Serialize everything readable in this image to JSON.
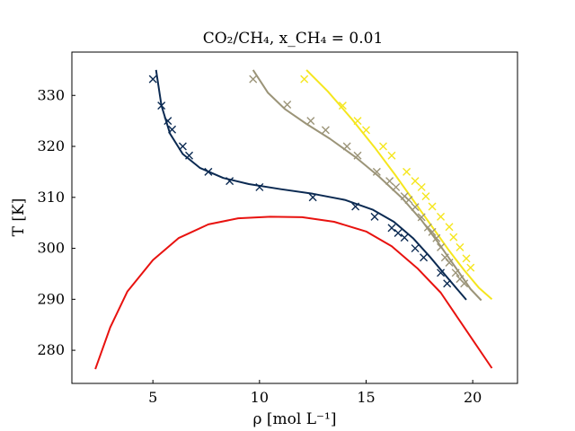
{
  "chart_data": {
    "type": "scatter",
    "title": "CO₂/CH₄, x_CH₄ = 0.01",
    "xlabel": "ρ [mol L⁻¹]",
    "ylabel": "T [K]",
    "xlim": [
      1.2,
      22.1
    ],
    "ylim": [
      273.5,
      338.5
    ],
    "xticks": [
      5,
      10,
      15,
      20
    ],
    "yticks": [
      280,
      290,
      300,
      310,
      320,
      330
    ],
    "grid": false,
    "legend": "none",
    "colors": {
      "navy": "#0b2a52",
      "gray": "#9b9478",
      "yellow": "#f5e61e",
      "red": "#e8120f"
    },
    "series": [
      {
        "kind": "line",
        "color": "#e8120f",
        "x": [
          2.3,
          3.0,
          3.8,
          5.0,
          6.2,
          7.6,
          9.0,
          10.5,
          12.0,
          13.5,
          15.0,
          16.2,
          17.4,
          18.5,
          19.6,
          20.9
        ],
        "y": [
          276.3,
          284.5,
          291.5,
          297.7,
          302.0,
          304.7,
          305.9,
          306.2,
          306.1,
          305.2,
          303.3,
          300.4,
          296.1,
          291.3,
          284.5,
          276.5
        ]
      },
      {
        "kind": "line",
        "color": "#0b2a52",
        "x": [
          5.15,
          5.4,
          5.8,
          6.4,
          7.2,
          8.3,
          9.5,
          11.0,
          12.5,
          14.0,
          15.3,
          16.3,
          17.2,
          18.0,
          18.8,
          19.7
        ],
        "y": [
          335.0,
          328.0,
          322.5,
          318.5,
          315.8,
          313.8,
          312.6,
          311.6,
          310.7,
          309.5,
          307.6,
          305.2,
          302.0,
          298.3,
          294.3,
          289.9
        ]
      },
      {
        "kind": "line",
        "color": "#9b9478",
        "x": [
          9.7,
          10.4,
          11.2,
          12.2,
          13.3,
          14.5,
          15.6,
          16.7,
          17.6,
          18.4,
          19.2,
          19.9,
          20.4
        ],
        "y": [
          335.0,
          330.5,
          327.3,
          324.4,
          321.5,
          317.9,
          314.1,
          309.8,
          305.5,
          301.0,
          296.2,
          292.0,
          289.8
        ]
      },
      {
        "kind": "line",
        "color": "#f5e61e",
        "x": [
          12.2,
          13.2,
          14.3,
          15.4,
          16.4,
          17.3,
          18.1,
          18.9,
          19.6,
          20.3,
          20.9
        ],
        "y": [
          335.0,
          330.8,
          325.5,
          319.8,
          314.2,
          308.9,
          304.2,
          299.5,
          295.7,
          292.2,
          290.0
        ]
      },
      {
        "kind": "markers",
        "marker": "x",
        "color": "#0b2a52",
        "x": [
          5.0,
          5.4,
          5.7,
          5.9,
          6.4,
          6.7,
          7.6,
          8.6,
          10.0,
          12.5,
          14.5,
          15.4,
          16.2,
          16.5,
          16.8,
          17.3,
          17.7,
          18.5,
          18.8
        ],
        "y": [
          333.2,
          328.0,
          325.0,
          323.3,
          320.0,
          318.2,
          315.0,
          313.2,
          312.0,
          310.0,
          308.2,
          306.2,
          304.0,
          303.0,
          302.1,
          300.0,
          298.2,
          295.2,
          293.1
        ]
      },
      {
        "kind": "markers",
        "marker": "x",
        "color": "#9b9478",
        "x": [
          9.7,
          11.3,
          12.4,
          13.1,
          14.1,
          14.6,
          15.5,
          16.1,
          16.4,
          16.8,
          17.0,
          17.3,
          17.6,
          17.9,
          18.1,
          18.3,
          18.5,
          18.7,
          18.9,
          19.2,
          19.4,
          19.6
        ],
        "y": [
          333.2,
          328.2,
          325.0,
          323.2,
          320.0,
          318.2,
          315.0,
          313.2,
          312.0,
          310.2,
          309.5,
          308.1,
          306.1,
          304.1,
          303.2,
          302.0,
          300.2,
          298.2,
          297.2,
          295.2,
          294.0,
          293.1
        ]
      },
      {
        "kind": "markers",
        "marker": "x",
        "color": "#f5e61e",
        "x": [
          12.1,
          13.9,
          14.6,
          15.0,
          15.8,
          16.2,
          16.9,
          17.3,
          17.6,
          17.8,
          18.1,
          18.5,
          18.9,
          19.1,
          19.4,
          19.7,
          19.9
        ],
        "y": [
          333.2,
          328.0,
          325.0,
          323.2,
          320.0,
          318.2,
          315.0,
          313.2,
          312.0,
          310.2,
          308.2,
          306.2,
          304.2,
          302.2,
          300.2,
          298.0,
          296.2
        ]
      }
    ]
  }
}
